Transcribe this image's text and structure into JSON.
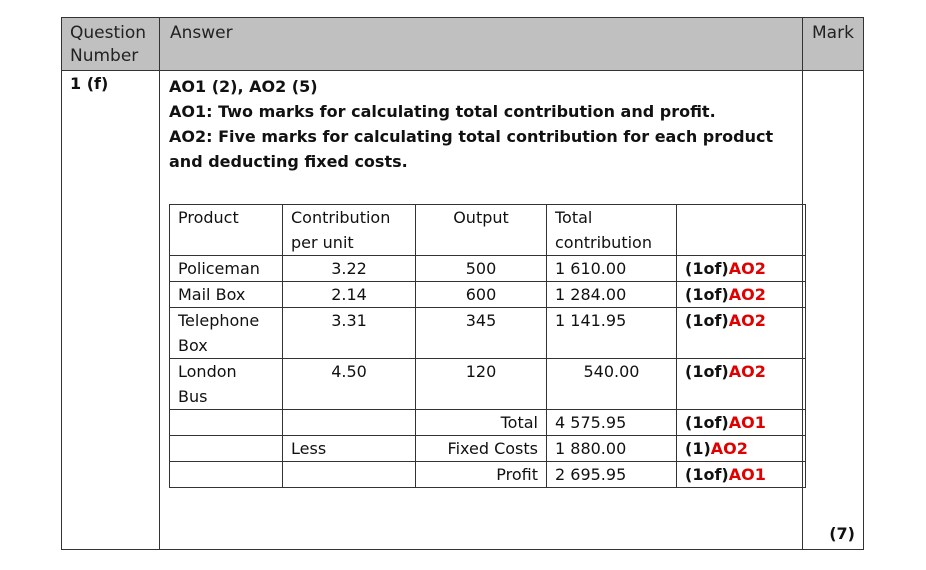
{
  "header": {
    "question_number_line1": "Question",
    "question_number_line2": "Number",
    "answer": "Answer",
    "mark": "Mark"
  },
  "question": {
    "number": "1 (f)",
    "line1": "AO1 (2),  AO2 (5)",
    "line2": "AO1: Two marks for calculating total contribution and profit.",
    "line3": "AO2: Five marks for calculating total contribution for each product",
    "line4": "and deducting fixed costs."
  },
  "table": {
    "headers": {
      "product": "Product",
      "contribution_l1": "Contribution",
      "contribution_l2": "per unit",
      "output": "Output",
      "total_l1": "Total",
      "total_l2": "contribution"
    },
    "rows": [
      {
        "product_l1": "Policeman",
        "product_l2": "",
        "contribution": "3.22",
        "output": "500",
        "total": "1 610.00",
        "mark_prefix": "(1of)",
        "mark_code": "AO2"
      },
      {
        "product_l1": "Mail Box",
        "product_l2": "",
        "contribution": "2.14",
        "output": "600",
        "total": "1 284.00",
        "mark_prefix": "(1of)",
        "mark_code": "AO2"
      },
      {
        "product_l1": "Telephone",
        "product_l2": "Box",
        "contribution": "3.31",
        "output": "345",
        "total": "1 141.95",
        "mark_prefix": "(1of)",
        "mark_code": "AO2"
      },
      {
        "product_l1": "London",
        "product_l2": "Bus",
        "contribution": "4.50",
        "output": "120",
        "total": "540.00",
        "mark_prefix": "(1of)",
        "mark_code": "AO2"
      }
    ],
    "summary": [
      {
        "col2": "",
        "label": "Total",
        "value": "4 575.95",
        "mark_prefix": "(1of)",
        "mark_code": "AO1"
      },
      {
        "col2": "Less",
        "label": "Fixed Costs",
        "value": "1 880.00",
        "mark_prefix": "(1)",
        "mark_code": "AO2"
      },
      {
        "col2": "",
        "label": "Profit",
        "value": "2 695.95",
        "mark_prefix": "(1of)",
        "mark_code": "AO1"
      }
    ]
  },
  "total_mark": "(7)",
  "colors": {
    "header_bg": "#c0c0c0",
    "accent_red": "#e00000"
  }
}
